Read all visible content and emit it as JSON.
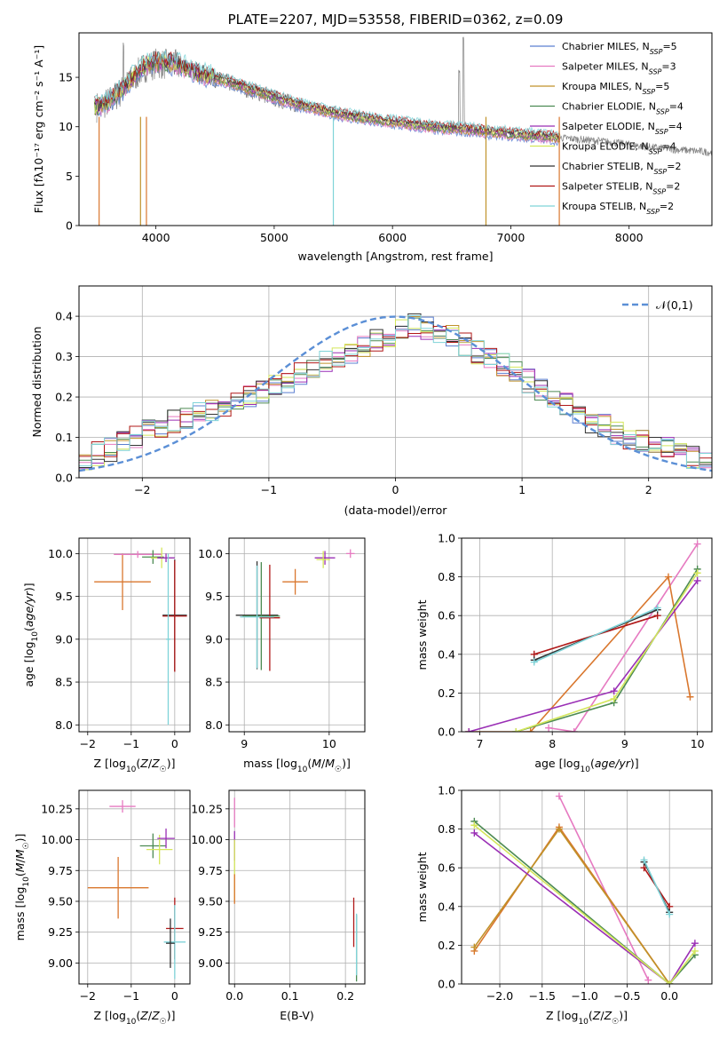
{
  "chart_data": [
    {
      "id": "spectrum",
      "type": "line",
      "title": "PLATE=2207, MJD=53558, FIBERID=0362, z=0.09",
      "xlabel": "wavelength [Angstrom, rest frame]",
      "ylabel": "Flux [fλ10⁻¹⁷ erg cm⁻² s⁻¹ A⁻¹]",
      "xlim": [
        3350,
        8700
      ],
      "ylim": [
        0,
        19.5
      ],
      "xticks": [
        4000,
        5000,
        6000,
        7000,
        8000
      ],
      "yticks": [
        0,
        5,
        10,
        15
      ],
      "grid": false,
      "legend_position": "top-right",
      "data_spectrum": {
        "name": "",
        "color": "#808080",
        "x": [
          3500,
          3600,
          3700,
          3800,
          3900,
          4000,
          4200,
          4400,
          4600,
          4800,
          5000,
          5200,
          5400,
          5600,
          5800,
          6000,
          6200,
          6400,
          6600,
          6800,
          7000,
          7200,
          7400,
          7600,
          7800,
          8000,
          8200,
          8400,
          8600,
          8700
        ],
        "y": [
          12.0,
          12.5,
          13.5,
          14.8,
          16.0,
          16.4,
          16.2,
          15.2,
          14.5,
          13.7,
          12.9,
          12.2,
          11.6,
          11.2,
          10.8,
          10.5,
          10.2,
          9.9,
          9.8,
          9.5,
          9.3,
          9.1,
          8.9,
          8.7,
          8.5,
          8.2,
          7.9,
          7.7,
          7.5,
          7.4
        ]
      },
      "series": [
        {
          "name": "Chabrier MILES, N_SSP=5",
          "color": "#5b7fd0"
        },
        {
          "name": "Salpeter MILES, N_SSP=3",
          "color": "#e67ac1"
        },
        {
          "name": "Kroupa MILES, N_SSP=5",
          "color": "#c0922a"
        },
        {
          "name": "Chabrier ELODIE, N_SSP=4",
          "color": "#4d8b53"
        },
        {
          "name": "Salpeter ELODIE, N_SSP=4",
          "color": "#9a2fb5"
        },
        {
          "name": "Kroupa ELODIE, N_SSP=4",
          "color": "#d4e65a"
        },
        {
          "name": "Chabrier STELIB, N_SSP=2",
          "color": "#333333"
        },
        {
          "name": "Salpeter STELIB, N_SSP=2",
          "color": "#b01818"
        },
        {
          "name": "Kroupa STELIB, N_SSP=2",
          "color": "#7fd3d8"
        }
      ],
      "model_continuum": {
        "x": [
          3500,
          3600,
          3700,
          3800,
          3900,
          4000,
          4200,
          4400,
          4600,
          4800,
          5000,
          5200,
          5400,
          5600,
          5800,
          6000,
          6200,
          6400,
          6600,
          6800,
          7000,
          7200,
          7400
        ],
        "y": [
          12.0,
          12.6,
          13.6,
          15.0,
          16.2,
          16.6,
          16.3,
          15.3,
          14.6,
          13.8,
          13.0,
          12.3,
          11.7,
          11.2,
          10.8,
          10.5,
          10.2,
          9.9,
          9.8,
          9.5,
          9.3,
          9.1,
          8.9
        ]
      },
      "legend_labels": [
        {
          "base": "Chabrier MILES, N",
          "sub": "SSP",
          "end": "=5"
        },
        {
          "base": "Salpeter MILES, N",
          "sub": "SSP",
          "end": "=3"
        },
        {
          "base": "Kroupa MILES, N",
          "sub": "SSP",
          "end": "=5"
        },
        {
          "base": "Chabrier ELODIE, N",
          "sub": "SSP",
          "end": "=4"
        },
        {
          "base": "Salpeter ELODIE, N",
          "sub": "SSP",
          "end": "=4"
        },
        {
          "base": "Kroupa ELODIE, N",
          "sub": "SSP",
          "end": "=4"
        },
        {
          "base": "Chabrier STELIB, N",
          "sub": "SSP",
          "end": "=2"
        },
        {
          "base": "Salpeter STELIB, N",
          "sub": "SSP",
          "end": "=2"
        },
        {
          "base": "Kroupa STELIB, N",
          "sub": "SSP",
          "end": "=2"
        }
      ]
    },
    {
      "id": "residuals",
      "type": "line",
      "title": "",
      "xlabel": "(data-model)/error",
      "ylabel": "Normed distribution",
      "xlim": [
        -2.5,
        2.5
      ],
      "ylim": [
        0,
        0.475
      ],
      "xticks": [
        -2,
        -1,
        0,
        1,
        2
      ],
      "yticks": [
        0.0,
        0.1,
        0.2,
        0.3,
        0.4
      ],
      "grid": true,
      "legend_position": "top-right",
      "gaussian": {
        "name": "𝒩(0,1)",
        "color": "#5b8fd6",
        "mean": 0,
        "sigma": 1
      },
      "hist_bin_width": 0.1,
      "hist_x_start": -2.5,
      "hist_profile": [
        0.05,
        0.06,
        0.07,
        0.09,
        0.1,
        0.12,
        0.13,
        0.14,
        0.15,
        0.16,
        0.17,
        0.18,
        0.19,
        0.2,
        0.21,
        0.23,
        0.24,
        0.26,
        0.27,
        0.29,
        0.3,
        0.31,
        0.33,
        0.34,
        0.35,
        0.37,
        0.38,
        0.37,
        0.36,
        0.35,
        0.33,
        0.31,
        0.3,
        0.28,
        0.26,
        0.24,
        0.22,
        0.2,
        0.18,
        0.16,
        0.14,
        0.13,
        0.11,
        0.1,
        0.09,
        0.08,
        0.07,
        0.06,
        0.05,
        0.04
      ]
    },
    {
      "id": "age_vs_Z",
      "type": "scatter",
      "xlabel": "Z [log10(Z/Z☉)]",
      "ylabel": "age [log10(age/yr)]",
      "xlim": [
        -2.2,
        0.35
      ],
      "ylim": [
        7.92,
        10.18
      ],
      "xticks": [
        -2,
        -1,
        0
      ],
      "yticks": [
        8.0,
        8.5,
        9.0,
        9.5,
        10.0
      ],
      "grid": true,
      "points": [
        {
          "x": -1.2,
          "y": 9.67,
          "xerr": 0.65,
          "yerr": 0.33,
          "color": "#d9772e"
        },
        {
          "x": -0.85,
          "y": 9.99,
          "xerr": 0.55,
          "yerr": 0.04,
          "color": "#e67ac1"
        },
        {
          "x": -0.5,
          "y": 9.96,
          "xerr": 0.25,
          "yerr": 0.08,
          "color": "#4d8b53"
        },
        {
          "x": -0.3,
          "y": 9.95,
          "xerr": 0.25,
          "yerr": 0.12,
          "color": "#d4e65a"
        },
        {
          "x": -0.2,
          "y": 9.95,
          "xerr": 0.2,
          "yerr": 0.05,
          "color": "#9a2fb5"
        },
        {
          "x": 0.0,
          "y": 9.28,
          "xerr": 0.28,
          "yerr": 0.65,
          "color": "#333333"
        },
        {
          "x": 0.0,
          "y": 9.27,
          "xerr": 0.28,
          "yerr": 0.65,
          "color": "#b01818"
        },
        {
          "x": -0.15,
          "y": 9.0,
          "xerr": 0.05,
          "yerr": 1.0,
          "color": "#7fd3d8"
        }
      ]
    },
    {
      "id": "age_vs_mass",
      "type": "scatter",
      "xlabel": "mass [log10(M/M☉)]",
      "ylabel": "",
      "xlim": [
        8.82,
        10.42
      ],
      "ylim": [
        7.92,
        10.18
      ],
      "xticks": [
        9,
        10
      ],
      "yticks": [
        8.0,
        8.5,
        9.0,
        9.5,
        10.0
      ],
      "grid": true,
      "points": [
        {
          "x": 9.15,
          "y": 9.28,
          "xerr": 0.25,
          "yerr": 0.63,
          "color": "#333333"
        },
        {
          "x": 9.2,
          "y": 9.27,
          "xerr": 0.22,
          "yerr": 0.63,
          "color": "#4d8b53"
        },
        {
          "x": 9.3,
          "y": 9.25,
          "xerr": 0.12,
          "yerr": 0.62,
          "color": "#b01818"
        },
        {
          "x": 9.15,
          "y": 9.26,
          "xerr": 0.2,
          "yerr": 0.6,
          "color": "#7fd3d8"
        },
        {
          "x": 9.6,
          "y": 9.67,
          "xerr": 0.15,
          "yerr": 0.15,
          "color": "#d9772e"
        },
        {
          "x": 9.95,
          "y": 9.95,
          "xerr": 0.12,
          "yerr": 0.08,
          "color": "#9a2fb5"
        },
        {
          "x": 9.93,
          "y": 9.93,
          "xerr": 0.08,
          "yerr": 0.1,
          "color": "#d4e65a"
        },
        {
          "x": 10.25,
          "y": 10.0,
          "xerr": 0.05,
          "yerr": 0.05,
          "color": "#e67ac1"
        }
      ]
    },
    {
      "id": "weight_vs_age",
      "type": "line",
      "xlabel": "age [log10(age/yr)]",
      "ylabel": "mass weight",
      "xlim": [
        6.75,
        10.2
      ],
      "ylim": [
        0,
        1.0
      ],
      "xticks": [
        7,
        8,
        9,
        10
      ],
      "yticks": [
        0.0,
        0.2,
        0.4,
        0.6,
        0.8,
        1.0
      ],
      "grid": true,
      "series": [
        {
          "name": "Salpeter MILES",
          "color": "#e67ac1",
          "x": [
            7.95,
            8.3,
            10.0
          ],
          "y": [
            0.02,
            0.0,
            0.97
          ]
        },
        {
          "name": "Kroupa MILES",
          "color": "#d9772e",
          "x": [
            6.85,
            7.7,
            9.6,
            9.9
          ],
          "y": [
            0.0,
            0.0,
            0.8,
            0.18
          ]
        },
        {
          "name": "Salpeter ELODIE",
          "color": "#9a2fb5",
          "x": [
            6.85,
            8.85,
            10.0
          ],
          "y": [
            0.0,
            0.21,
            0.78
          ]
        },
        {
          "name": "Chabrier ELODIE",
          "color": "#4d8b53",
          "x": [
            7.5,
            8.85,
            10.0
          ],
          "y": [
            0.0,
            0.15,
            0.84
          ]
        },
        {
          "name": "Kroupa ELODIE",
          "color": "#d4e65a",
          "x": [
            7.5,
            8.85,
            10.0
          ],
          "y": [
            0.0,
            0.17,
            0.82
          ]
        },
        {
          "name": "Salpeter STELIB",
          "color": "#b01818",
          "x": [
            7.75,
            9.45
          ],
          "y": [
            0.4,
            0.6
          ]
        },
        {
          "name": "Chabrier STELIB",
          "color": "#333333",
          "x": [
            7.75,
            9.45
          ],
          "y": [
            0.37,
            0.63
          ]
        },
        {
          "name": "Kroupa STELIB",
          "color": "#7fd3d8",
          "x": [
            7.75,
            9.45
          ],
          "y": [
            0.36,
            0.64
          ]
        }
      ]
    },
    {
      "id": "mass_vs_Z",
      "type": "scatter",
      "xlabel": "Z [log10(Z/Z☉)]",
      "ylabel": "mass [log10(M/M☉)]",
      "xlim": [
        -2.2,
        0.35
      ],
      "ylim": [
        8.83,
        10.4
      ],
      "xticks": [
        -2,
        -1,
        0
      ],
      "yticks": [
        9.0,
        9.25,
        9.5,
        9.75,
        10.0,
        10.25
      ],
      "grid": true,
      "points": [
        {
          "x": -1.3,
          "y": 9.61,
          "xerr": 0.7,
          "yerr": 0.25,
          "color": "#d9772e"
        },
        {
          "x": -1.2,
          "y": 10.27,
          "xerr": 0.3,
          "yerr": 0.05,
          "color": "#e67ac1"
        },
        {
          "x": -0.5,
          "y": 9.95,
          "xerr": 0.3,
          "yerr": 0.1,
          "color": "#4d8b53"
        },
        {
          "x": -0.35,
          "y": 9.92,
          "xerr": 0.3,
          "yerr": 0.12,
          "color": "#d4e65a"
        },
        {
          "x": -0.2,
          "y": 10.01,
          "xerr": 0.2,
          "yerr": 0.08,
          "color": "#9a2fb5"
        },
        {
          "x": 0.0,
          "y": 9.28,
          "xerr": 0.2,
          "yerr": 0.25,
          "color": "#b01818"
        },
        {
          "x": 0.0,
          "y": 9.17,
          "xerr": 0.25,
          "yerr": 0.3,
          "color": "#7fd3d8"
        },
        {
          "x": -0.1,
          "y": 9.16,
          "xerr": 0.1,
          "yerr": 0.2,
          "color": "#333333"
        }
      ]
    },
    {
      "id": "mass_vs_EBV",
      "type": "scatter",
      "xlabel": "E(B-V)",
      "ylabel": "",
      "xlim": [
        -0.01,
        0.235
      ],
      "ylim": [
        8.83,
        10.4
      ],
      "xticks": [
        0.0,
        0.1,
        0.2
      ],
      "yticks": [
        9.0,
        9.25,
        9.5,
        9.75,
        10.0,
        10.25
      ],
      "grid": true,
      "points": [
        {
          "x": 0.0,
          "y": 10.22,
          "xerr": 0.0,
          "yerr": 0.12,
          "color": "#e67ac1"
        },
        {
          "x": 0.0,
          "y": 9.95,
          "xerr": 0.0,
          "yerr": 0.12,
          "color": "#9a2fb5"
        },
        {
          "x": 0.0,
          "y": 9.75,
          "xerr": 0.0,
          "yerr": 0.25,
          "color": "#d4e65a"
        },
        {
          "x": 0.0,
          "y": 9.6,
          "xerr": 0.0,
          "yerr": 0.12,
          "color": "#d9772e"
        },
        {
          "x": 0.215,
          "y": 9.33,
          "xerr": 0.0,
          "yerr": 0.2,
          "color": "#b01818"
        },
        {
          "x": 0.22,
          "y": 9.12,
          "xerr": 0.0,
          "yerr": 0.27,
          "color": "#4d8b53"
        },
        {
          "x": 0.22,
          "y": 9.15,
          "xerr": 0.0,
          "yerr": 0.25,
          "color": "#7fd3d8"
        }
      ]
    },
    {
      "id": "weight_vs_Z",
      "type": "line",
      "xlabel": "Z [log10(Z/Z☉)]",
      "ylabel": "mass weight",
      "xlim": [
        -2.45,
        0.5
      ],
      "ylim": [
        0,
        1.0
      ],
      "xticks": [
        -2.0,
        -1.5,
        -1.0,
        -0.5,
        0.0
      ],
      "yticks": [
        0.0,
        0.2,
        0.4,
        0.6,
        0.8,
        1.0
      ],
      "grid": true,
      "series": [
        {
          "name": "Salpeter MILES",
          "color": "#e67ac1",
          "x": [
            -1.3,
            -0.25
          ],
          "y": [
            0.97,
            0.02
          ]
        },
        {
          "name": "Kroupa MILES",
          "color": "#d9772e",
          "x": [
            -2.3,
            -1.3,
            0.0
          ],
          "y": [
            0.17,
            0.81,
            0.0
          ]
        },
        {
          "name": "Chabrier MILES",
          "color": "#c0922a",
          "x": [
            -2.3,
            -1.3,
            0.0
          ],
          "y": [
            0.19,
            0.8,
            0.0
          ]
        },
        {
          "name": "Salpeter ELODIE",
          "color": "#9a2fb5",
          "x": [
            -2.3,
            0.0,
            0.3
          ],
          "y": [
            0.78,
            0.0,
            0.21
          ]
        },
        {
          "name": "Chabrier ELODIE",
          "color": "#4d8b53",
          "x": [
            -2.3,
            0.0,
            0.3
          ],
          "y": [
            0.84,
            0.0,
            0.15
          ]
        },
        {
          "name": "Kroupa ELODIE",
          "color": "#d4e65a",
          "x": [
            -2.3,
            0.0,
            0.3
          ],
          "y": [
            0.82,
            0.0,
            0.17
          ]
        },
        {
          "name": "Salpeter STELIB",
          "color": "#b01818",
          "x": [
            -0.3,
            0.0
          ],
          "y": [
            0.6,
            0.4
          ]
        },
        {
          "name": "Chabrier STELIB",
          "color": "#333333",
          "x": [
            -0.3,
            0.0
          ],
          "y": [
            0.63,
            0.37
          ]
        },
        {
          "name": "Kroupa STELIB",
          "color": "#7fd3d8",
          "x": [
            -0.3,
            0.0
          ],
          "y": [
            0.64,
            0.36
          ]
        }
      ]
    }
  ]
}
